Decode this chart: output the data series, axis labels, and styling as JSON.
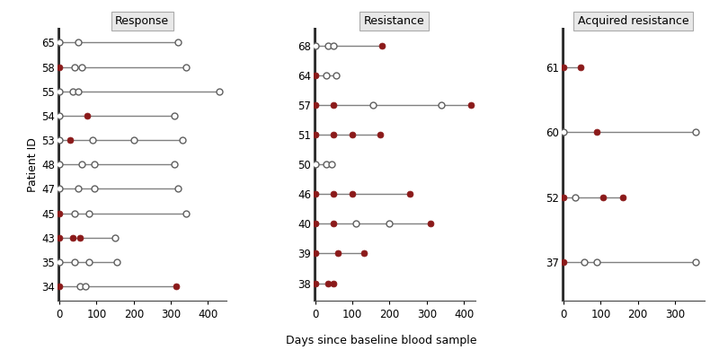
{
  "panels": [
    {
      "title": "Response",
      "xlim": [
        -5,
        450
      ],
      "xticks": [
        0,
        100,
        200,
        300,
        400
      ],
      "patients": [
        {
          "id": "65",
          "points": [
            {
              "x": 0,
              "filled": false
            },
            {
              "x": 50,
              "filled": false
            },
            {
              "x": 320,
              "filled": false
            }
          ]
        },
        {
          "id": "58",
          "points": [
            {
              "x": 0,
              "filled": true
            },
            {
              "x": 40,
              "filled": false
            },
            {
              "x": 60,
              "filled": false
            },
            {
              "x": 340,
              "filled": false
            }
          ]
        },
        {
          "id": "55",
          "points": [
            {
              "x": 0,
              "filled": false
            },
            {
              "x": 35,
              "filled": false
            },
            {
              "x": 50,
              "filled": false
            },
            {
              "x": 430,
              "filled": false
            }
          ]
        },
        {
          "id": "54",
          "points": [
            {
              "x": 0,
              "filled": false
            },
            {
              "x": 75,
              "filled": true
            },
            {
              "x": 310,
              "filled": false
            }
          ]
        },
        {
          "id": "53",
          "points": [
            {
              "x": 0,
              "filled": false
            },
            {
              "x": 30,
              "filled": true
            },
            {
              "x": 90,
              "filled": false
            },
            {
              "x": 200,
              "filled": false
            },
            {
              "x": 330,
              "filled": false
            }
          ]
        },
        {
          "id": "48",
          "points": [
            {
              "x": 0,
              "filled": false
            },
            {
              "x": 60,
              "filled": false
            },
            {
              "x": 95,
              "filled": false
            },
            {
              "x": 310,
              "filled": false
            }
          ]
        },
        {
          "id": "47",
          "points": [
            {
              "x": 0,
              "filled": false
            },
            {
              "x": 50,
              "filled": false
            },
            {
              "x": 95,
              "filled": false
            },
            {
              "x": 320,
              "filled": false
            }
          ]
        },
        {
          "id": "45",
          "points": [
            {
              "x": 0,
              "filled": true
            },
            {
              "x": 40,
              "filled": false
            },
            {
              "x": 80,
              "filled": false
            },
            {
              "x": 340,
              "filled": false
            }
          ]
        },
        {
          "id": "43",
          "points": [
            {
              "x": 0,
              "filled": true
            },
            {
              "x": 35,
              "filled": true
            },
            {
              "x": 55,
              "filled": true
            },
            {
              "x": 150,
              "filled": false
            }
          ]
        },
        {
          "id": "35",
          "points": [
            {
              "x": 0,
              "filled": false
            },
            {
              "x": 40,
              "filled": false
            },
            {
              "x": 80,
              "filled": false
            },
            {
              "x": 155,
              "filled": false
            }
          ]
        },
        {
          "id": "34",
          "points": [
            {
              "x": 0,
              "filled": true
            },
            {
              "x": 55,
              "filled": false
            },
            {
              "x": 70,
              "filled": false
            },
            {
              "x": 315,
              "filled": true
            }
          ]
        }
      ]
    },
    {
      "title": "Resistance",
      "xlim": [
        -5,
        430
      ],
      "xticks": [
        0,
        100,
        200,
        300,
        400
      ],
      "patients": [
        {
          "id": "68",
          "points": [
            {
              "x": 0,
              "filled": false
            },
            {
              "x": 35,
              "filled": false
            },
            {
              "x": 50,
              "filled": false
            },
            {
              "x": 180,
              "filled": true
            }
          ]
        },
        {
          "id": "64",
          "points": [
            {
              "x": 0,
              "filled": true
            },
            {
              "x": 30,
              "filled": false
            },
            {
              "x": 55,
              "filled": false
            }
          ]
        },
        {
          "id": "57",
          "points": [
            {
              "x": 0,
              "filled": true
            },
            {
              "x": 50,
              "filled": true
            },
            {
              "x": 155,
              "filled": false
            },
            {
              "x": 340,
              "filled": false
            },
            {
              "x": 420,
              "filled": true
            }
          ]
        },
        {
          "id": "51",
          "points": [
            {
              "x": 0,
              "filled": true
            },
            {
              "x": 50,
              "filled": true
            },
            {
              "x": 100,
              "filled": true
            },
            {
              "x": 175,
              "filled": true
            }
          ]
        },
        {
          "id": "50",
          "points": [
            {
              "x": 0,
              "filled": false
            },
            {
              "x": 30,
              "filled": false
            },
            {
              "x": 45,
              "filled": false
            }
          ]
        },
        {
          "id": "46",
          "points": [
            {
              "x": 0,
              "filled": true
            },
            {
              "x": 50,
              "filled": true
            },
            {
              "x": 100,
              "filled": true
            },
            {
              "x": 255,
              "filled": true
            }
          ]
        },
        {
          "id": "40",
          "points": [
            {
              "x": 0,
              "filled": true
            },
            {
              "x": 50,
              "filled": true
            },
            {
              "x": 110,
              "filled": false
            },
            {
              "x": 200,
              "filled": false
            },
            {
              "x": 310,
              "filled": true
            }
          ]
        },
        {
          "id": "39",
          "points": [
            {
              "x": 0,
              "filled": true
            },
            {
              "x": 60,
              "filled": true
            },
            {
              "x": 130,
              "filled": true
            }
          ]
        },
        {
          "id": "38",
          "points": [
            {
              "x": 0,
              "filled": true
            },
            {
              "x": 35,
              "filled": true
            },
            {
              "x": 50,
              "filled": true
            }
          ]
        }
      ]
    },
    {
      "title": "Acquired resistance",
      "xlim": [
        -5,
        380
      ],
      "xticks": [
        0,
        100,
        200,
        300
      ],
      "patients": [
        {
          "id": "61",
          "points": [
            {
              "x": 0,
              "filled": true
            },
            {
              "x": 45,
              "filled": true
            }
          ]
        },
        {
          "id": "60",
          "points": [
            {
              "x": 0,
              "filled": false
            },
            {
              "x": 90,
              "filled": true
            },
            {
              "x": 355,
              "filled": false
            }
          ]
        },
        {
          "id": "52",
          "points": [
            {
              "x": 0,
              "filled": true
            },
            {
              "x": 30,
              "filled": false
            },
            {
              "x": 105,
              "filled": true
            },
            {
              "x": 160,
              "filled": true
            }
          ]
        },
        {
          "id": "37",
          "points": [
            {
              "x": 0,
              "filled": true
            },
            {
              "x": 55,
              "filled": false
            },
            {
              "x": 90,
              "filled": false
            },
            {
              "x": 355,
              "filled": false
            }
          ]
        }
      ]
    }
  ],
  "filled_color": "#8B1A1A",
  "open_edgecolor": "#606060",
  "line_color": "#808080",
  "marker_size": 5,
  "xlabel": "Days since baseline blood sample",
  "title_fontsize": 9,
  "label_fontsize": 9,
  "tick_fontsize": 8.5,
  "panel_title_bg": "#e8e8e8",
  "panel_title_edge": "#aaaaaa"
}
